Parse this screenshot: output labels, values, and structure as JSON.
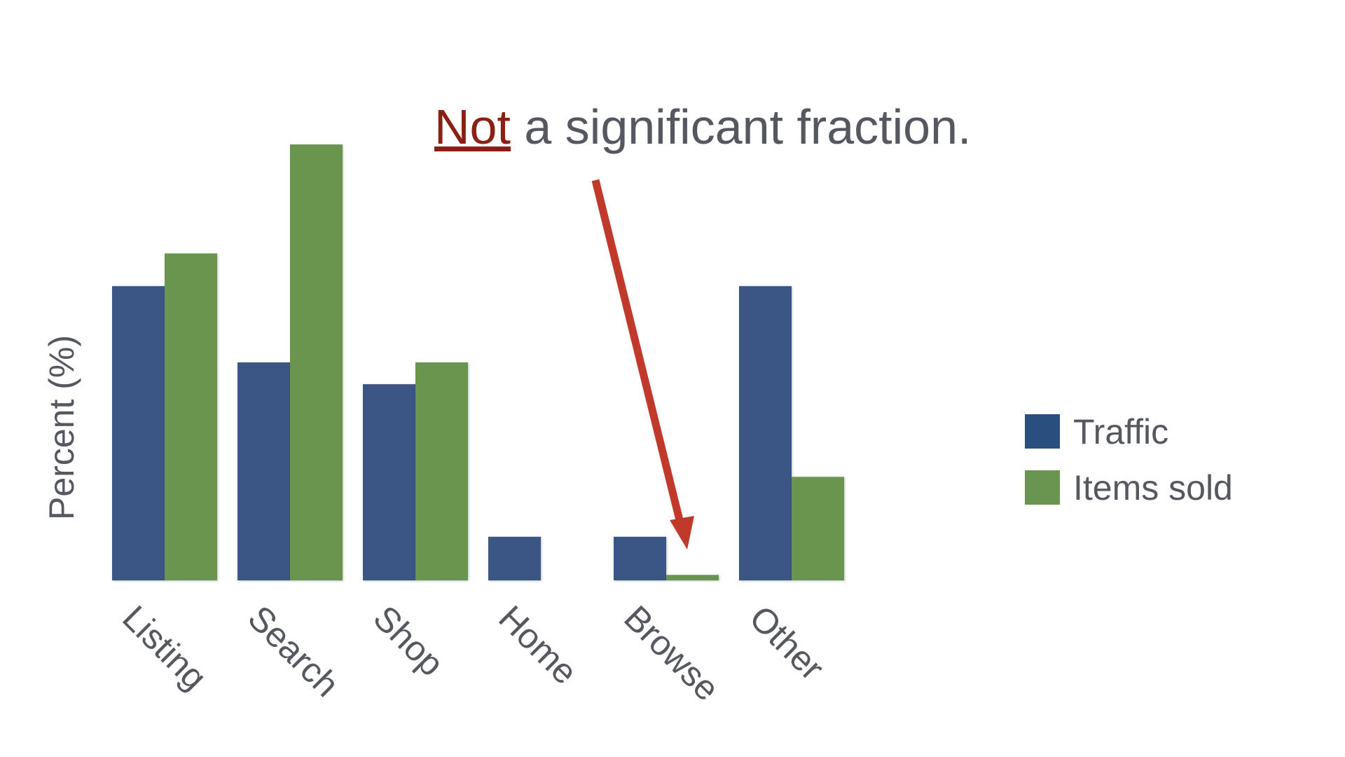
{
  "annotation": {
    "emphasis": "Not",
    "rest": " a significant fraction.",
    "emphasis_color": "#8a1f14",
    "arrow_color": "#c0392b"
  },
  "chart_data": {
    "type": "bar",
    "title": "",
    "xlabel": "",
    "ylabel": "Percent (%)",
    "categories": [
      "Listing",
      "Search",
      "Shop",
      "Home",
      "Browse",
      "Other"
    ],
    "series": [
      {
        "name": "Traffic",
        "color": "#3a5584",
        "values": [
          27,
          20,
          18,
          4,
          4,
          27
        ]
      },
      {
        "name": "Items sold",
        "color": "#6a9550",
        "values": [
          30,
          40,
          20,
          0,
          0.5,
          9.5
        ]
      }
    ],
    "ylim": [
      0,
      42
    ],
    "grid": false,
    "legend_position": "right",
    "legend": [
      {
        "label": "Traffic",
        "color": "#2a4e7e"
      },
      {
        "label": "Items sold",
        "color": "#6a9550"
      }
    ]
  }
}
